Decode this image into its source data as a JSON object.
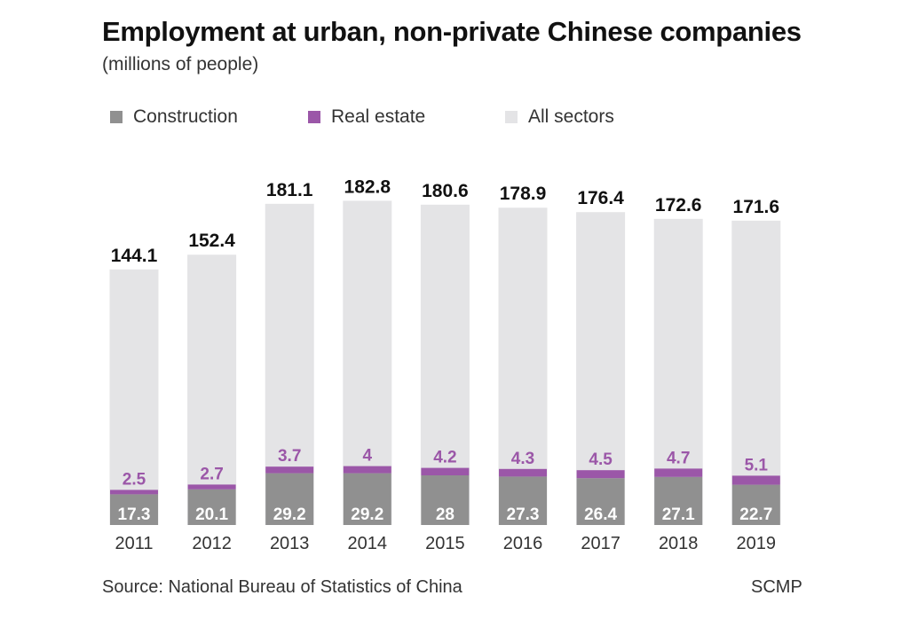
{
  "chart_data": {
    "type": "bar",
    "title": "Employment at urban, non-private Chinese companies",
    "subtitle": "(millions of people)",
    "categories": [
      "2011",
      "2012",
      "2013",
      "2014",
      "2015",
      "2016",
      "2017",
      "2018",
      "2019"
    ],
    "series": [
      {
        "name": "Construction",
        "color": "#909090",
        "values": [
          17.3,
          20.1,
          29.2,
          29.2,
          28,
          27.3,
          26.4,
          27.1,
          22.7
        ]
      },
      {
        "name": "Real estate",
        "color": "#9b57a8",
        "values": [
          2.5,
          2.7,
          3.7,
          4,
          4.2,
          4.3,
          4.5,
          4.7,
          5.1
        ]
      },
      {
        "name": "All sectors",
        "color": "#e4e4e6",
        "values": [
          144.1,
          152.4,
          181.1,
          182.8,
          180.6,
          178.9,
          176.4,
          172.6,
          171.6
        ]
      }
    ],
    "ylim": [
      0,
      185
    ],
    "grid": false,
    "legend": "top-left"
  },
  "footer": {
    "source": "Source: National Bureau of Statistics of China",
    "credit": "SCMP"
  }
}
